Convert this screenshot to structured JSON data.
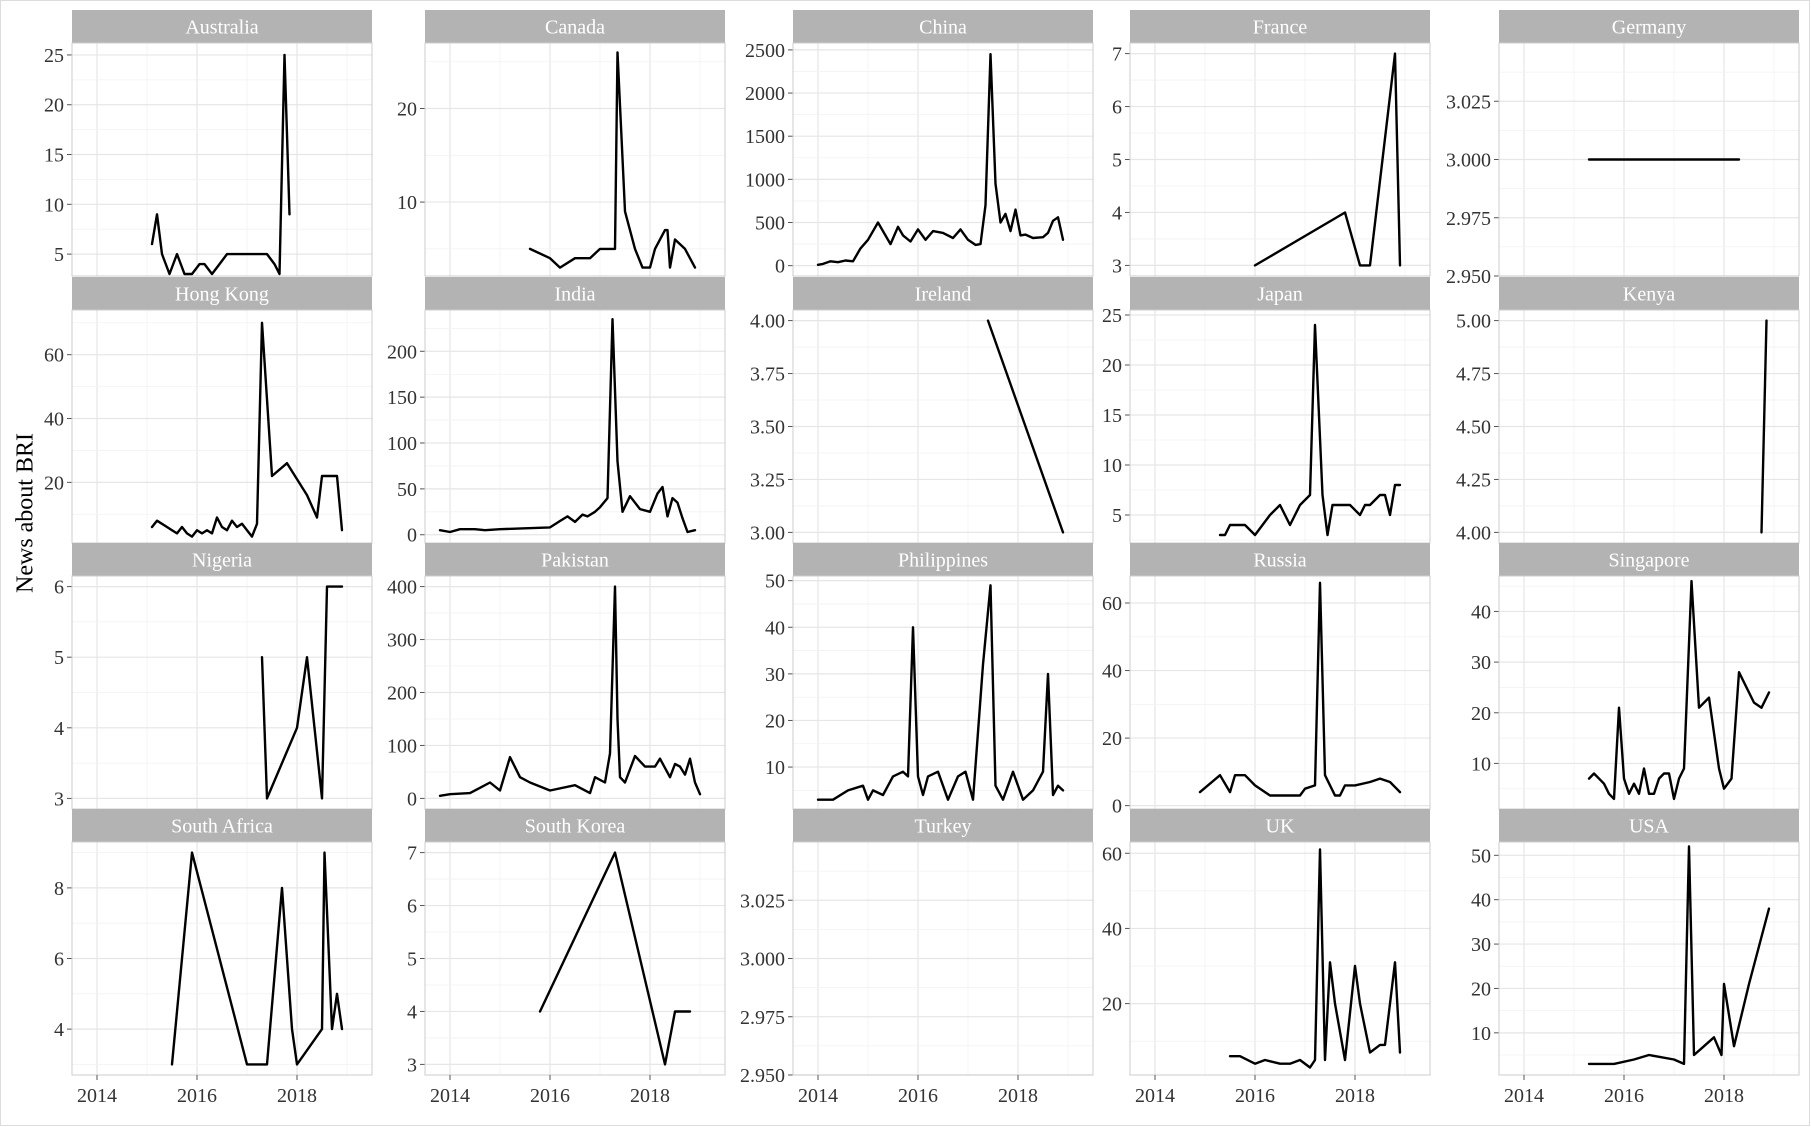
{
  "figure": {
    "ylabel": "News about BRI"
  },
  "chart_data": {
    "type": "line",
    "ylabel": "News about BRI",
    "x_ticks": [
      "2014",
      "2016",
      "2018"
    ],
    "x_range": [
      2013.5,
      2019.5
    ],
    "grid": true,
    "panels": [
      {
        "name": "Australia",
        "yticks": [
          5,
          10,
          15,
          20,
          25
        ],
        "yticklabels": [
          "5",
          "10",
          "15",
          "20",
          "25"
        ],
        "ylim": [
          2.8,
          26.2
        ],
        "x": [
          2015.1,
          2015.2,
          2015.3,
          2015.45,
          2015.6,
          2015.75,
          2015.9,
          2016.05,
          2016.15,
          2016.3,
          2016.45,
          2016.6,
          2016.8,
          2017.0,
          2017.2,
          2017.4,
          2017.55,
          2017.65,
          2017.75,
          2017.85
        ],
        "y": [
          6,
          9,
          5,
          3,
          5,
          3,
          3,
          4,
          4,
          3,
          4,
          5,
          5,
          5,
          5,
          5,
          4,
          3,
          25,
          9
        ]
      },
      {
        "name": "Canada",
        "yticks": [
          10,
          20
        ],
        "yticklabels": [
          "10",
          "20"
        ],
        "ylim": [
          2.1,
          27
        ],
        "x": [
          2015.6,
          2016.0,
          2016.2,
          2016.5,
          2016.7,
          2016.8,
          2017.0,
          2017.2,
          2017.3,
          2017.35,
          2017.5,
          2017.7,
          2017.85,
          2018.0,
          2018.1,
          2018.3,
          2018.35,
          2018.4,
          2018.5,
          2018.7,
          2018.9
        ],
        "y": [
          5,
          4,
          3,
          4,
          4,
          4,
          5,
          5,
          5,
          26,
          9,
          5,
          3,
          3,
          5,
          7,
          7,
          3,
          6,
          5,
          3
        ]
      },
      {
        "name": "China",
        "yticks": [
          0,
          500,
          1000,
          1500,
          2000,
          2500
        ],
        "yticklabels": [
          "0",
          "500",
          "1000",
          "1500",
          "2000",
          "2500"
        ],
        "ylim": [
          -120,
          2580
        ],
        "x": [
          2014.0,
          2014.1,
          2014.25,
          2014.4,
          2014.55,
          2014.7,
          2014.85,
          2015.0,
          2015.2,
          2015.45,
          2015.6,
          2015.7,
          2015.85,
          2016.0,
          2016.15,
          2016.3,
          2016.5,
          2016.7,
          2016.85,
          2017.0,
          2017.15,
          2017.25,
          2017.35,
          2017.45,
          2017.55,
          2017.65,
          2017.75,
          2017.85,
          2017.95,
          2018.05,
          2018.15,
          2018.3,
          2018.5,
          2018.6,
          2018.7,
          2018.8,
          2018.9
        ],
        "y": [
          10,
          20,
          50,
          40,
          60,
          50,
          200,
          300,
          500,
          250,
          450,
          350,
          280,
          420,
          300,
          400,
          380,
          320,
          420,
          300,
          240,
          250,
          700,
          2450,
          950,
          500,
          600,
          400,
          650,
          350,
          360,
          320,
          330,
          380,
          520,
          560,
          300
        ]
      },
      {
        "name": "France",
        "yticks": [
          3,
          4,
          5,
          6,
          7
        ],
        "yticklabels": [
          "3",
          "4",
          "5",
          "6",
          "7"
        ],
        "ylim": [
          2.8,
          7.2
        ],
        "x": [
          2016.0,
          2017.8,
          2018.1,
          2018.3,
          2018.8,
          2018.9
        ],
        "y": [
          3,
          4,
          3,
          3,
          7,
          3
        ]
      },
      {
        "name": "Germany",
        "yticks": [
          2.95,
          2.975,
          3.0,
          3.025
        ],
        "yticklabels": [
          "2.950",
          "2.975",
          "3.000",
          "3.025"
        ],
        "ylim": [
          2.95,
          3.05
        ],
        "x": [
          2015.3,
          2018.3
        ],
        "y": [
          3,
          3
        ]
      },
      {
        "name": "Hong Kong",
        "yticks": [
          20,
          40,
          60
        ],
        "yticklabels": [
          "20",
          "40",
          "60"
        ],
        "ylim": [
          1,
          74
        ],
        "x": [
          2015.1,
          2015.2,
          2015.4,
          2015.5,
          2015.6,
          2015.7,
          2015.8,
          2015.9,
          2016.0,
          2016.1,
          2016.2,
          2016.3,
          2016.4,
          2016.5,
          2016.6,
          2016.7,
          2016.8,
          2016.9,
          2017.0,
          2017.1,
          2017.2,
          2017.3,
          2017.5,
          2017.8,
          2018.2,
          2018.4,
          2018.5,
          2018.8,
          2018.9
        ],
        "y": [
          6,
          8,
          6,
          5,
          4,
          6,
          4,
          3,
          5,
          4,
          5,
          4,
          9,
          6,
          5,
          8,
          6,
          7,
          5,
          3,
          7,
          70,
          22,
          26,
          16,
          9,
          22,
          22,
          5
        ]
      },
      {
        "name": "India",
        "yticks": [
          0,
          50,
          100,
          150,
          200
        ],
        "yticklabels": [
          "0",
          "50",
          "100",
          "150",
          "200"
        ],
        "ylim": [
          -9,
          245
        ],
        "x": [
          2013.8,
          2014.0,
          2014.2,
          2014.5,
          2014.7,
          2015.0,
          2015.5,
          2016.0,
          2016.2,
          2016.35,
          2016.5,
          2016.65,
          2016.75,
          2016.9,
          2017.0,
          2017.15,
          2017.25,
          2017.35,
          2017.45,
          2017.6,
          2017.8,
          2018.0,
          2018.15,
          2018.25,
          2018.35,
          2018.45,
          2018.55,
          2018.65,
          2018.75,
          2018.9
        ],
        "y": [
          5,
          3,
          6,
          6,
          5,
          6,
          7,
          8,
          15,
          20,
          14,
          22,
          20,
          25,
          30,
          40,
          235,
          80,
          25,
          42,
          28,
          25,
          45,
          52,
          20,
          40,
          35,
          18,
          3,
          5
        ]
      },
      {
        "name": "Ireland",
        "yticks": [
          3.0,
          3.25,
          3.5,
          3.75,
          4.0
        ],
        "yticklabels": [
          "3.00",
          "3.25",
          "3.50",
          "3.75",
          "4.00"
        ],
        "ylim": [
          2.95,
          4.05
        ],
        "x": [
          2017.4,
          2018.9
        ],
        "y": [
          4,
          3
        ]
      },
      {
        "name": "Japan",
        "yticks": [
          5,
          10,
          15,
          20,
          25
        ],
        "yticklabels": [
          "5",
          "10",
          "15",
          "20",
          "25"
        ],
        "ylim": [
          2.2,
          25.5
        ],
        "x": [
          2015.3,
          2015.4,
          2015.5,
          2015.8,
          2016.0,
          2016.3,
          2016.5,
          2016.7,
          2016.9,
          2017.1,
          2017.2,
          2017.35,
          2017.45,
          2017.55,
          2017.7,
          2017.9,
          2018.1,
          2018.2,
          2018.3,
          2018.5,
          2018.6,
          2018.7,
          2018.8,
          2018.9
        ],
        "y": [
          3,
          3,
          4,
          4,
          3,
          5,
          6,
          4,
          6,
          7,
          24,
          7,
          3,
          6,
          6,
          6,
          5,
          6,
          6,
          7,
          7,
          5,
          8,
          8
        ]
      },
      {
        "name": "Kenya",
        "yticks": [
          4.0,
          4.25,
          4.5,
          4.75,
          5.0
        ],
        "yticklabels": [
          "4.00",
          "4.25",
          "4.50",
          "4.75",
          "5.00"
        ],
        "ylim": [
          3.95,
          5.05
        ],
        "x": [
          2018.75,
          2018.85
        ],
        "y": [
          4,
          5
        ]
      },
      {
        "name": "Nigeria",
        "yticks": [
          3,
          4,
          5,
          6
        ],
        "yticklabels": [
          "3",
          "4",
          "5",
          "6"
        ],
        "ylim": [
          2.85,
          6.15
        ],
        "x": [
          2017.3,
          2017.4,
          2018.0,
          2018.2,
          2018.5,
          2018.6,
          2018.9
        ],
        "y": [
          5,
          3,
          4,
          5,
          3,
          6,
          6
        ]
      },
      {
        "name": "Pakistan",
        "yticks": [
          0,
          100,
          200,
          300,
          400
        ],
        "yticklabels": [
          "0",
          "100",
          "200",
          "300",
          "400"
        ],
        "ylim": [
          -20,
          420
        ],
        "x": [
          2013.8,
          2014.0,
          2014.4,
          2014.6,
          2014.8,
          2015.0,
          2015.2,
          2015.4,
          2015.6,
          2016.0,
          2016.5,
          2016.8,
          2016.9,
          2017.1,
          2017.2,
          2017.3,
          2017.35,
          2017.4,
          2017.5,
          2017.7,
          2017.9,
          2018.0,
          2018.1,
          2018.2,
          2018.4,
          2018.5,
          2018.6,
          2018.7,
          2018.8,
          2018.9,
          2019.0
        ],
        "y": [
          5,
          8,
          10,
          20,
          30,
          15,
          78,
          40,
          30,
          15,
          25,
          10,
          40,
          30,
          85,
          400,
          150,
          40,
          30,
          80,
          60,
          60,
          60,
          75,
          40,
          65,
          60,
          45,
          75,
          30,
          8
        ]
      },
      {
        "name": "Philippines",
        "yticks": [
          10,
          20,
          30,
          40,
          50
        ],
        "yticklabels": [
          "10",
          "20",
          "30",
          "40",
          "50"
        ],
        "ylim": [
          1,
          51
        ],
        "x": [
          2014.0,
          2014.3,
          2014.6,
          2014.9,
          2015.0,
          2015.1,
          2015.3,
          2015.5,
          2015.7,
          2015.8,
          2015.9,
          2016.0,
          2016.1,
          2016.2,
          2016.4,
          2016.6,
          2016.8,
          2016.95,
          2017.1,
          2017.3,
          2017.45,
          2017.55,
          2017.7,
          2017.9,
          2018.1,
          2018.3,
          2018.5,
          2018.6,
          2018.7,
          2018.8,
          2018.9
        ],
        "y": [
          3,
          3,
          5,
          6,
          3,
          5,
          4,
          8,
          9,
          8,
          40,
          8,
          4,
          8,
          9,
          3,
          8,
          9,
          3,
          32,
          49,
          6,
          3,
          9,
          3,
          5,
          9,
          30,
          4,
          6,
          5
        ]
      },
      {
        "name": "Russia",
        "yticks": [
          0,
          20,
          40,
          60
        ],
        "yticklabels": [
          "0",
          "20",
          "40",
          "60"
        ],
        "ylim": [
          -1,
          68
        ],
        "x": [
          2014.9,
          2015.3,
          2015.5,
          2015.6,
          2015.8,
          2016.0,
          2016.3,
          2016.6,
          2016.9,
          2017.0,
          2017.2,
          2017.3,
          2017.4,
          2017.6,
          2017.7,
          2017.8,
          2018.0,
          2018.3,
          2018.5,
          2018.7,
          2018.9
        ],
        "y": [
          4,
          9,
          4,
          9,
          9,
          6,
          3,
          3,
          3,
          5,
          6,
          66,
          9,
          3,
          3,
          6,
          6,
          7,
          8,
          7,
          4
        ]
      },
      {
        "name": "Singapore",
        "yticks": [
          10,
          20,
          30,
          40
        ],
        "yticklabels": [
          "10",
          "20",
          "30",
          "40"
        ],
        "ylim": [
          1,
          47
        ],
        "x": [
          2015.3,
          2015.4,
          2015.6,
          2015.7,
          2015.8,
          2015.9,
          2016.0,
          2016.1,
          2016.2,
          2016.3,
          2016.4,
          2016.5,
          2016.6,
          2016.7,
          2016.8,
          2016.9,
          2017.0,
          2017.1,
          2017.2,
          2017.35,
          2017.5,
          2017.7,
          2017.9,
          2018.0,
          2018.15,
          2018.3,
          2018.5,
          2018.6,
          2018.75,
          2018.9
        ],
        "y": [
          7,
          8,
          6,
          4,
          3,
          21,
          7,
          4,
          6,
          4,
          9,
          4,
          4,
          7,
          8,
          8,
          3,
          7,
          9,
          46,
          21,
          23,
          9,
          5,
          7,
          28,
          24,
          22,
          21,
          24
        ]
      },
      {
        "name": "South Africa",
        "yticks": [
          4,
          6,
          8
        ],
        "yticklabels": [
          "4",
          "6",
          "8"
        ],
        "ylim": [
          2.7,
          9.3
        ],
        "x": [
          2015.5,
          2015.9,
          2017.0,
          2017.4,
          2017.7,
          2017.9,
          2018.0,
          2018.5,
          2018.55,
          2018.7,
          2018.8,
          2018.9
        ],
        "y": [
          3,
          9,
          3,
          3,
          8,
          4,
          3,
          4,
          9,
          4,
          5,
          4
        ]
      },
      {
        "name": "South Korea",
        "yticks": [
          3,
          4,
          5,
          6,
          7
        ],
        "yticklabels": [
          "3",
          "4",
          "5",
          "6",
          "7"
        ],
        "ylim": [
          2.8,
          7.2
        ],
        "x": [
          2015.8,
          2017.3,
          2018.3,
          2018.5,
          2018.8
        ],
        "y": [
          4,
          7,
          3,
          4,
          4
        ]
      },
      {
        "name": "Turkey",
        "yticks": [
          2.95,
          2.975,
          3.0,
          3.025
        ],
        "yticklabels": [
          "2.950",
          "2.975",
          "3.000",
          "3.025"
        ],
        "ylim": [
          2.95,
          3.05
        ],
        "x": [],
        "y": []
      },
      {
        "name": "UK",
        "yticks": [
          20,
          40,
          60
        ],
        "yticklabels": [
          "20",
          "40",
          "60"
        ],
        "ylim": [
          1,
          63
        ],
        "x": [
          2015.5,
          2015.7,
          2016.0,
          2016.2,
          2016.5,
          2016.7,
          2016.9,
          2017.1,
          2017.2,
          2017.3,
          2017.4,
          2017.5,
          2017.6,
          2017.8,
          2018.0,
          2018.1,
          2018.3,
          2018.5,
          2018.6,
          2018.8,
          2018.9
        ],
        "y": [
          6,
          6,
          4,
          5,
          4,
          4,
          5,
          3,
          5,
          61,
          5,
          31,
          20,
          5,
          30,
          20,
          7,
          9,
          9,
          31,
          7
        ]
      },
      {
        "name": "USA",
        "yticks": [
          10,
          20,
          30,
          40,
          50
        ],
        "yticklabels": [
          "10",
          "20",
          "30",
          "40",
          "50"
        ],
        "ylim": [
          0.5,
          53
        ],
        "x": [
          2015.3,
          2015.8,
          2016.2,
          2016.5,
          2017.0,
          2017.2,
          2017.3,
          2017.4,
          2017.6,
          2017.8,
          2017.95,
          2018.0,
          2018.2,
          2018.5,
          2018.9
        ],
        "y": [
          3,
          3,
          4,
          5,
          4,
          3,
          52,
          5,
          7,
          9,
          5,
          21,
          7,
          21,
          38
        ]
      }
    ]
  }
}
